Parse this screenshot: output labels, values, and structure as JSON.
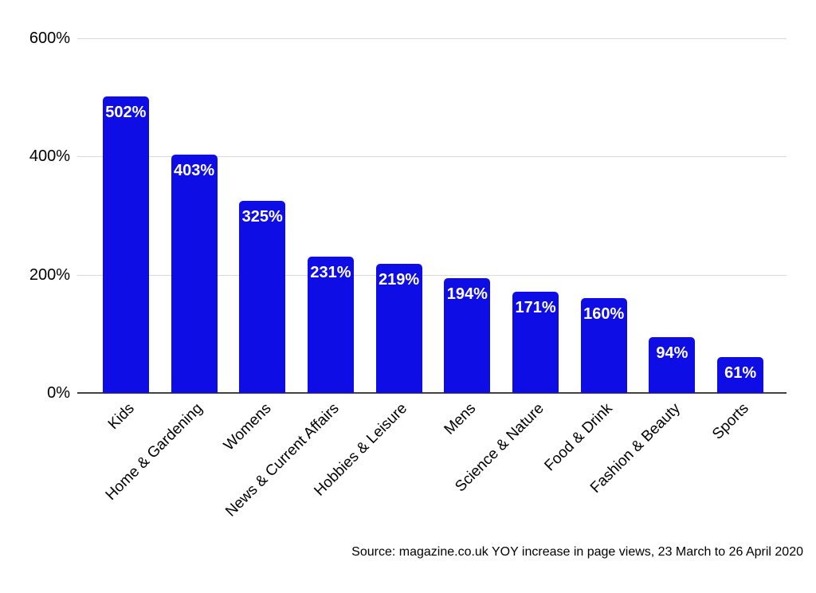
{
  "chart_data": {
    "type": "bar",
    "title": "",
    "categories": [
      "Kids",
      "Home & Gardening",
      "Womens",
      "News & Current Affairs",
      "Hobbies & Leisure",
      "Mens",
      "Science & Nature",
      "Food & Drink",
      "Fashion & Beauty",
      "Sports"
    ],
    "values": [
      502,
      403,
      325,
      231,
      219,
      194,
      171,
      160,
      94,
      61
    ],
    "bar_labels": [
      "502%",
      "403%",
      "325%",
      "231%",
      "219%",
      "194%",
      "171%",
      "160%",
      "94%",
      "61%"
    ],
    "yticks": [
      {
        "value": 600,
        "label": "600%"
      },
      {
        "value": 400,
        "label": "400%"
      },
      {
        "value": 200,
        "label": "200%"
      },
      {
        "value": 0,
        "label": "0%"
      }
    ],
    "ylim": [
      0,
      600
    ],
    "grid": true,
    "legend": "none",
    "bar_color": "#0e0de6",
    "bar_label_color": "#ffffff",
    "gridline_color": "#d9d9d9",
    "axis_line_color": "#424242",
    "source_note": "Source: magazine.co.uk YOY increase in page views, 23 March to 26 April 2020"
  }
}
